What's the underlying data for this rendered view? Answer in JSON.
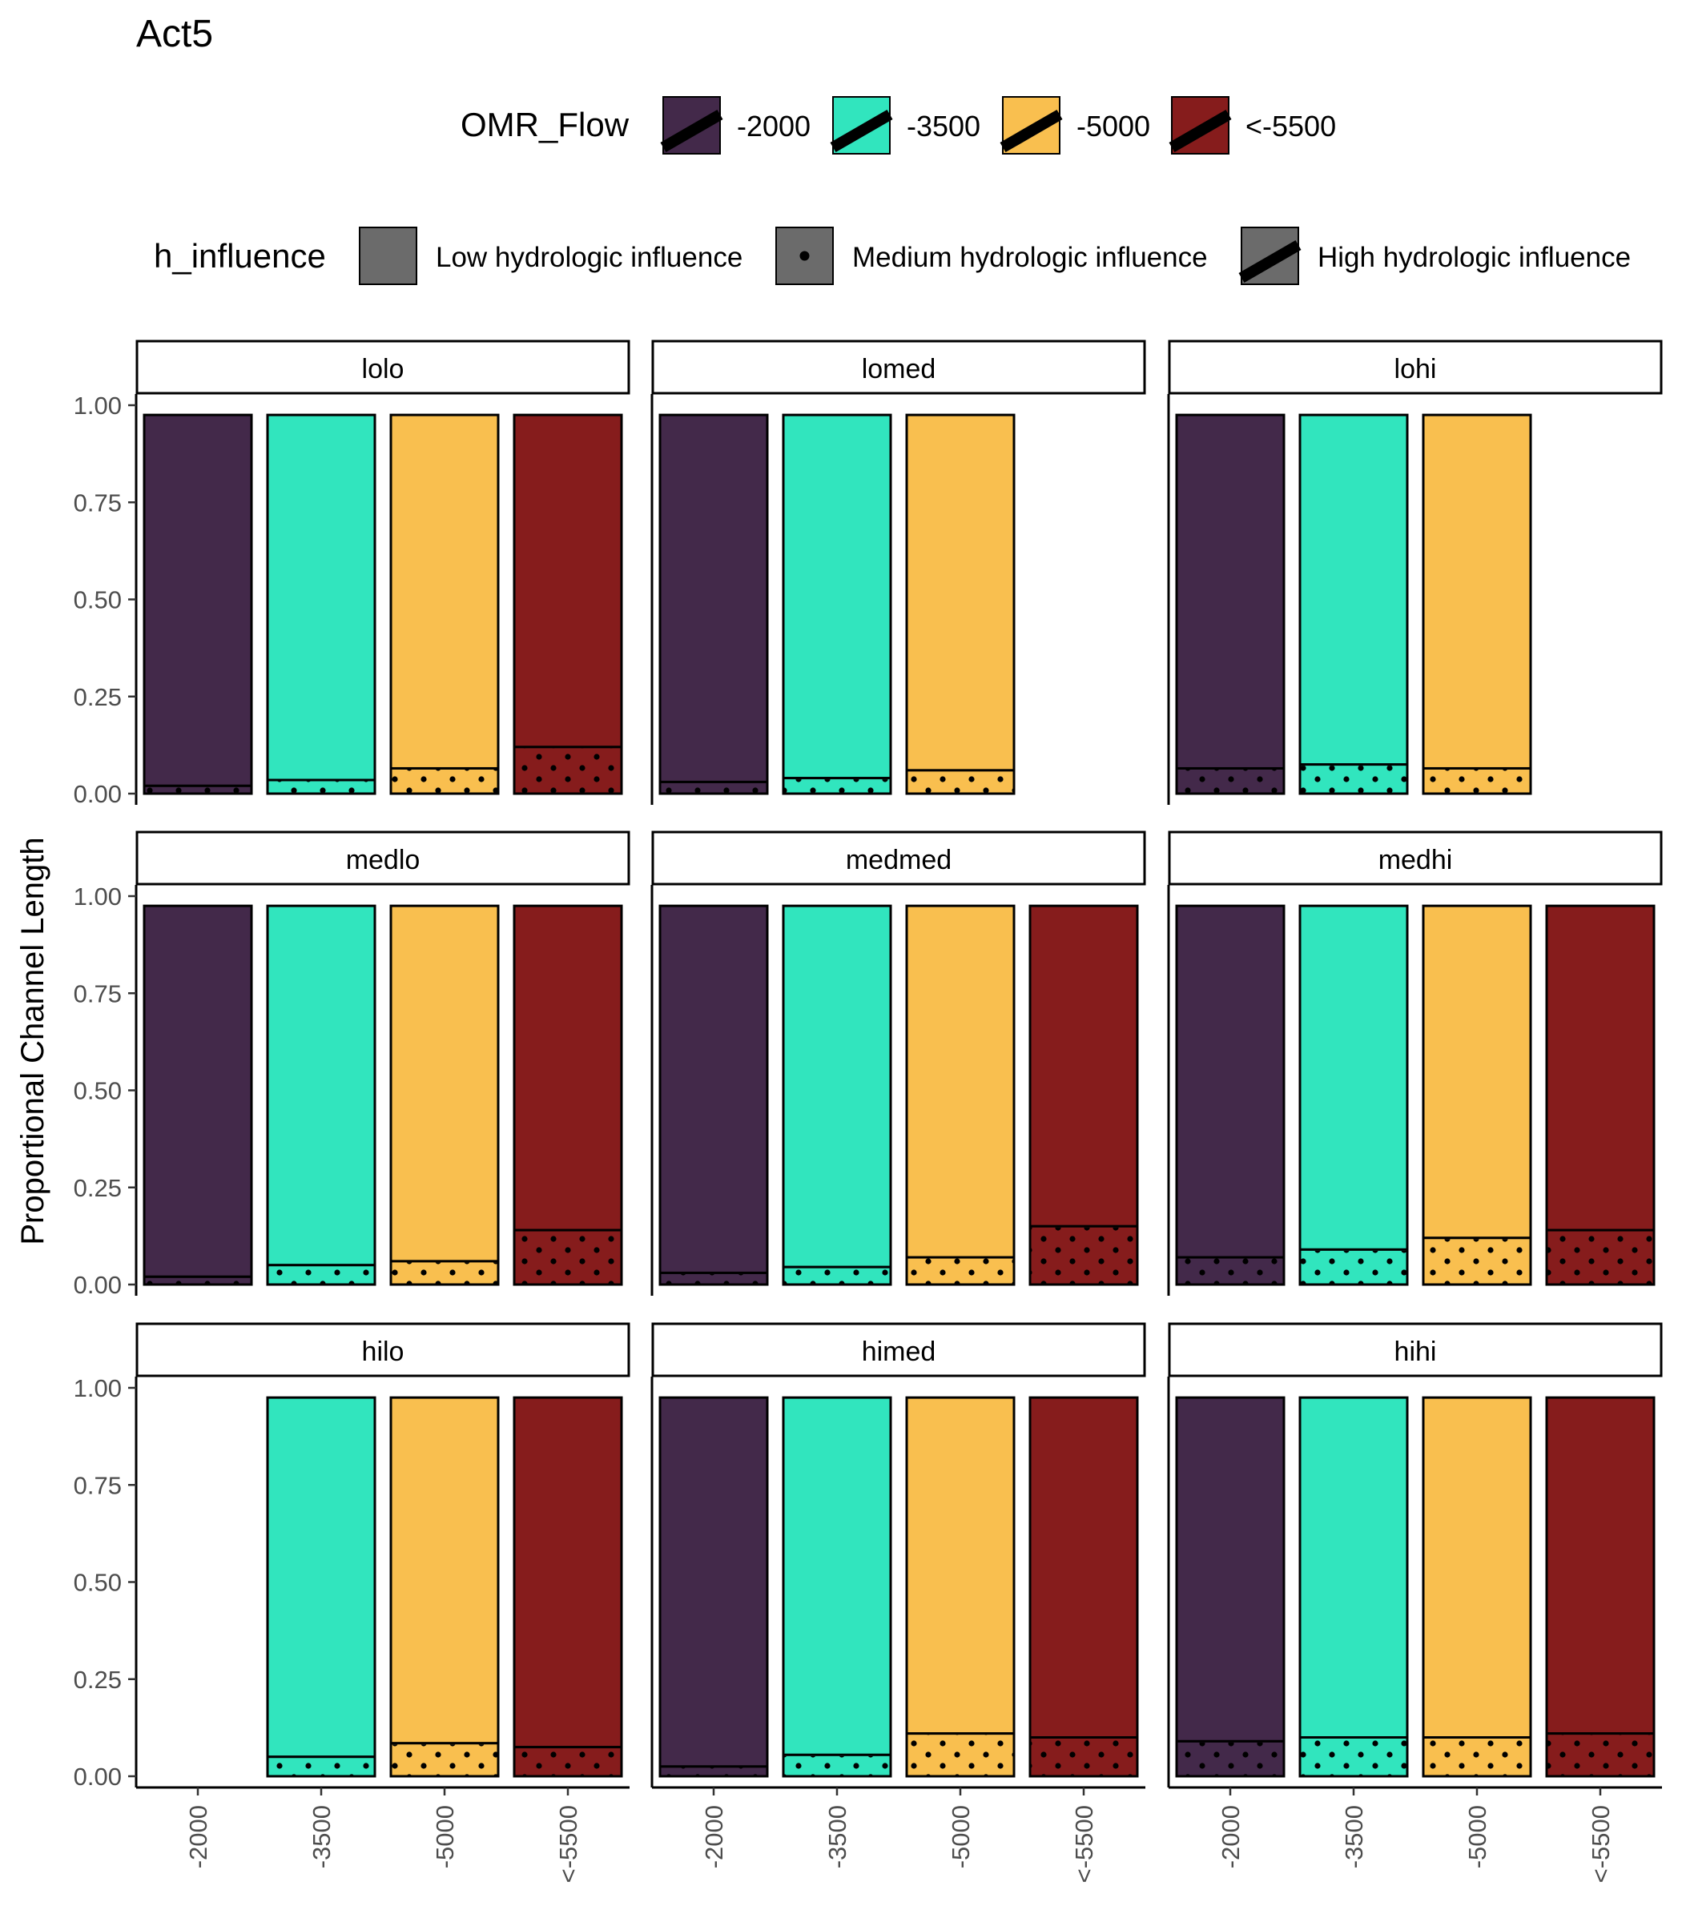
{
  "chart_data": {
    "type": "bar",
    "title": "Act5",
    "ylabel": "Proportional Channel Length",
    "xlabel": "",
    "ylim": [
      0,
      1
    ],
    "y_ticks": [
      "0.00",
      "0.25",
      "0.50",
      "0.75",
      "1.00"
    ],
    "y_tick_values": [
      0,
      0.25,
      0.5,
      0.75,
      1
    ],
    "categories": [
      "-2000",
      "-3500",
      "-5000",
      "<-5500"
    ],
    "legend": {
      "placement": "top",
      "fill_title": "OMR_Flow",
      "fill_items": [
        {
          "label": "-2000",
          "color": "#43294A"
        },
        {
          "label": "-3500",
          "color": "#31E5BE"
        },
        {
          "label": "-5000",
          "color": "#F9BF4F"
        },
        {
          "label": "<-5500",
          "color": "#861C1C"
        }
      ],
      "pattern_title": "h_influence",
      "pattern_items": [
        {
          "label": "Low hydrologic influence",
          "pattern": "none"
        },
        {
          "label": "Medium hydrologic influence",
          "pattern": "dots"
        },
        {
          "label": "High hydrologic influence",
          "pattern": "stripe"
        }
      ]
    },
    "grid": false,
    "patterns": {
      "bottom_segment": "dots",
      "top_segment": "none"
    },
    "panels": [
      {
        "name": "lolo",
        "bars": [
          {
            "category": "-2000",
            "total": 0.975,
            "medium": 0.02
          },
          {
            "category": "-3500",
            "total": 0.975,
            "medium": 0.035
          },
          {
            "category": "-5000",
            "total": 0.975,
            "medium": 0.065
          },
          {
            "category": "<-5500",
            "total": 0.975,
            "medium": 0.12
          }
        ]
      },
      {
        "name": "lomed",
        "bars": [
          {
            "category": "-2000",
            "total": 0.975,
            "medium": 0.03
          },
          {
            "category": "-3500",
            "total": 0.975,
            "medium": 0.04
          },
          {
            "category": "-5000",
            "total": 0.975,
            "medium": 0.06
          }
        ]
      },
      {
        "name": "lohi",
        "bars": [
          {
            "category": "-2000",
            "total": 0.975,
            "medium": 0.065
          },
          {
            "category": "-3500",
            "total": 0.975,
            "medium": 0.075
          },
          {
            "category": "-5000",
            "total": 0.975,
            "medium": 0.065
          }
        ]
      },
      {
        "name": "medlo",
        "bars": [
          {
            "category": "-2000",
            "total": 0.975,
            "medium": 0.02
          },
          {
            "category": "-3500",
            "total": 0.975,
            "medium": 0.05
          },
          {
            "category": "-5000",
            "total": 0.975,
            "medium": 0.06
          },
          {
            "category": "<-5500",
            "total": 0.975,
            "medium": 0.14
          }
        ]
      },
      {
        "name": "medmed",
        "bars": [
          {
            "category": "-2000",
            "total": 0.975,
            "medium": 0.03
          },
          {
            "category": "-3500",
            "total": 0.975,
            "medium": 0.045
          },
          {
            "category": "-5000",
            "total": 0.975,
            "medium": 0.07
          },
          {
            "category": "<-5500",
            "total": 0.975,
            "medium": 0.15
          }
        ]
      },
      {
        "name": "medhi",
        "bars": [
          {
            "category": "-2000",
            "total": 0.975,
            "medium": 0.07
          },
          {
            "category": "-3500",
            "total": 0.975,
            "medium": 0.09
          },
          {
            "category": "-5000",
            "total": 0.975,
            "medium": 0.12
          },
          {
            "category": "<-5500",
            "total": 0.975,
            "medium": 0.14
          }
        ]
      },
      {
        "name": "hilo",
        "bars": [
          {
            "category": "-3500",
            "total": 0.975,
            "medium": 0.05
          },
          {
            "category": "-5000",
            "total": 0.975,
            "medium": 0.085
          },
          {
            "category": "<-5500",
            "total": 0.975,
            "medium": 0.075
          }
        ]
      },
      {
        "name": "himed",
        "bars": [
          {
            "category": "-2000",
            "total": 0.975,
            "medium": 0.025
          },
          {
            "category": "-3500",
            "total": 0.975,
            "medium": 0.055
          },
          {
            "category": "-5000",
            "total": 0.975,
            "medium": 0.11
          },
          {
            "category": "<-5500",
            "total": 0.975,
            "medium": 0.1
          }
        ]
      },
      {
        "name": "hihi",
        "bars": [
          {
            "category": "-2000",
            "total": 0.975,
            "medium": 0.09
          },
          {
            "category": "-3500",
            "total": 0.975,
            "medium": 0.1
          },
          {
            "category": "-5000",
            "total": 0.975,
            "medium": 0.1
          },
          {
            "category": "<-5500",
            "total": 0.975,
            "medium": 0.11
          }
        ]
      }
    ]
  }
}
